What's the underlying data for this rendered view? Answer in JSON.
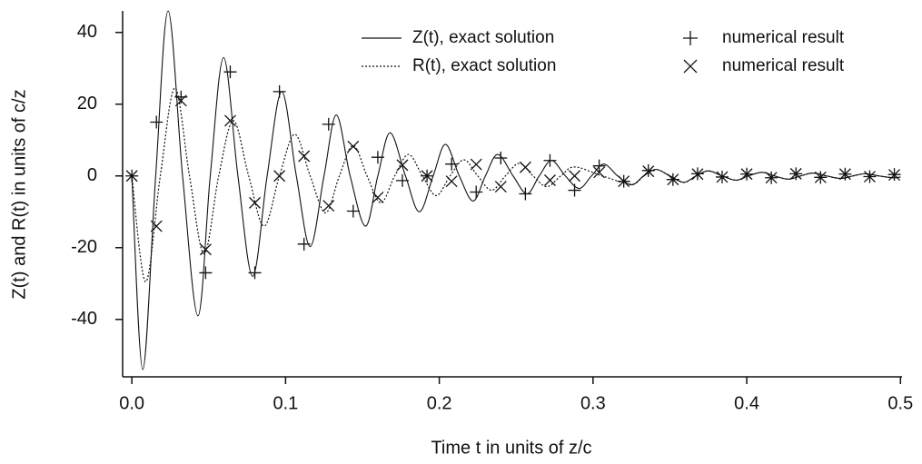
{
  "chart_data": {
    "type": "line",
    "x_label": "Time t in units of z/c",
    "y_label": "Z(t) and R(t) in units of c/z",
    "xlim": [
      -0.006,
      0.501
    ],
    "ylim": [
      -56,
      46
    ],
    "xticks": [
      {
        "value": 0,
        "label": "0.0"
      },
      0.1,
      0.2,
      0.3,
      0.4,
      0.5
    ],
    "yticks": [
      -40,
      -20,
      0,
      20,
      40
    ],
    "grid": false,
    "series": [
      {
        "name": "Z(t), exact solution",
        "color": "#111111",
        "style": "solid",
        "x": [
          0,
          0.0071,
          0.0155,
          0.0236,
          0.033,
          0.043,
          0.051,
          0.0597,
          0.069,
          0.0786,
          0.088,
          0.0975,
          0.107,
          0.116,
          0.125,
          0.133,
          0.142,
          0.152,
          0.16,
          0.168,
          0.178,
          0.187,
          0.196,
          0.204,
          0.213,
          0.222,
          0.23,
          0.238,
          0.248,
          0.257,
          0.265,
          0.273,
          0.282,
          0.291,
          0.299,
          0.307,
          0.316,
          0.325,
          0.333,
          0.341,
          0.35,
          0.359,
          0.367,
          0.375,
          0.384,
          0.393,
          0.401,
          0.41,
          0.418,
          0.427,
          0.435,
          0.443,
          0.452,
          0.461,
          0.469,
          0.477,
          0.486,
          0.495,
          0.5
        ],
        "values": [
          0,
          -54,
          0,
          46,
          0,
          -39,
          0,
          33,
          0,
          -28,
          0,
          23.5,
          0,
          -19.7,
          0,
          17,
          0,
          -14,
          0,
          12,
          0,
          -10,
          0,
          8.8,
          0,
          -7,
          0,
          6,
          0,
          -5,
          0,
          4.3,
          0,
          -3.5,
          0,
          3.3,
          0,
          -2.5,
          0,
          1.8,
          0,
          -1.8,
          0,
          1.4,
          0,
          -1.2,
          0,
          1,
          0,
          -0.9,
          0,
          0.8,
          0,
          -0.7,
          0,
          0.6,
          0,
          -0.5,
          -0.3
        ]
      },
      {
        "name": "R(t), exact solution",
        "color": "#111111",
        "style": "dotted",
        "x": [
          0,
          0.009,
          0.0185,
          0.028,
          0.0375,
          0.047,
          0.0565,
          0.066,
          0.076,
          0.086,
          0.096,
          0.106,
          0.116,
          0.126,
          0.135,
          0.144,
          0.153,
          0.162,
          0.171,
          0.18,
          0.189,
          0.198,
          0.207,
          0.216,
          0.225,
          0.234,
          0.243,
          0.252,
          0.261,
          0.27,
          0.279,
          0.288,
          0.306,
          0.325,
          0.333,
          0.341,
          0.35,
          0.359,
          0.367,
          0.375,
          0.384,
          0.393,
          0.401,
          0.41,
          0.418,
          0.427,
          0.435,
          0.443,
          0.452,
          0.461,
          0.469,
          0.477,
          0.486,
          0.495,
          0.5
        ],
        "values": [
          0,
          -29.5,
          0,
          24.5,
          0,
          -21.7,
          0,
          15.4,
          0,
          -14,
          0,
          11.6,
          0,
          -10.3,
          0,
          8.5,
          0,
          -7.5,
          0,
          6,
          0,
          -5.5,
          0,
          4.5,
          0,
          -4,
          0,
          3.5,
          0,
          -3,
          0,
          2.5,
          0,
          -2.3,
          0,
          1.8,
          0,
          -1.8,
          0,
          1.4,
          0,
          -1.2,
          0,
          1,
          0,
          -0.9,
          0,
          0.8,
          0,
          -0.7,
          0,
          0.6,
          0,
          -0.5,
          -0.3
        ]
      },
      {
        "name": "numerical result",
        "color": "#111111",
        "marker": "plus",
        "x": [
          0,
          0.016,
          0.032,
          0.048,
          0.064,
          0.08,
          0.096,
          0.112,
          0.128,
          0.144,
          0.16,
          0.176,
          0.192,
          0.208,
          0.224,
          0.24,
          0.256,
          0.272,
          0.288,
          0.304,
          0.32,
          0.336,
          0.352,
          0.368,
          0.384,
          0.4,
          0.416,
          0.432,
          0.448,
          0.464,
          0.48,
          0.496
        ],
        "values": [
          0,
          15,
          22,
          -27,
          29,
          -27,
          23.5,
          -19,
          14.4,
          -9.8,
          5.2,
          -1.3,
          0,
          3.3,
          -4.5,
          5,
          -5,
          4.3,
          -4,
          2.8,
          -1.5,
          1.5,
          -1,
          0.6,
          -0.3,
          0.5,
          -0.5,
          0.6,
          -0.4,
          0.5,
          -0.2,
          0.4
        ]
      },
      {
        "name": "numerical result",
        "color": "#111111",
        "marker": "cross",
        "x": [
          0,
          0.016,
          0.032,
          0.048,
          0.064,
          0.08,
          0.096,
          0.112,
          0.128,
          0.144,
          0.16,
          0.176,
          0.192,
          0.208,
          0.224,
          0.24,
          0.256,
          0.272,
          0.288,
          0.304,
          0.32,
          0.336,
          0.352,
          0.368,
          0.384,
          0.4,
          0.416,
          0.432,
          0.448,
          0.464,
          0.48,
          0.496
        ],
        "values": [
          0,
          -14,
          21,
          -20.5,
          15.4,
          -7.5,
          0,
          5.5,
          -8.3,
          8.2,
          -6,
          3,
          0,
          -1.5,
          3.2,
          -3,
          2.4,
          -1.2,
          0,
          1,
          -1.5,
          1.3,
          -1,
          0.5,
          -0.3,
          0.5,
          -0.5,
          0.6,
          -0.4,
          0.5,
          -0.2,
          0.3
        ]
      }
    ]
  }
}
